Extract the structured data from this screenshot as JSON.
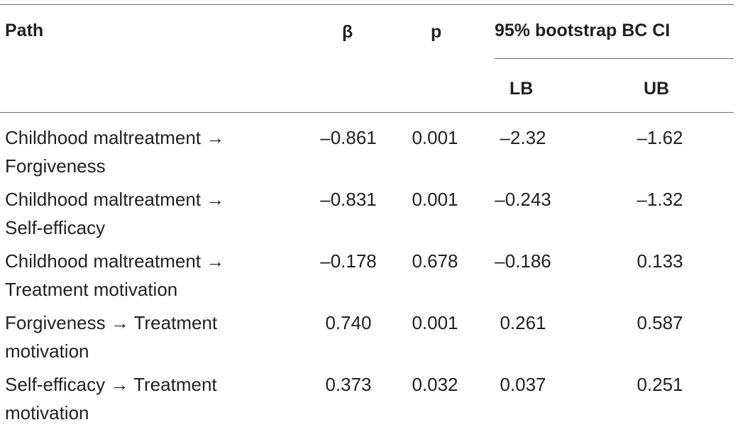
{
  "header": {
    "path": "Path",
    "beta": "β",
    "p": "p",
    "ci_group": "95% bootstrap BC CI",
    "lb": "LB",
    "ub": "UB"
  },
  "rows": [
    {
      "path_line1": "Childhood maltreatment →",
      "path_line2": "Forgiveness",
      "beta": "–0.861",
      "p": "0.001",
      "lb": "–2.32",
      "ub": "–1.62"
    },
    {
      "path_line1": "Childhood maltreatment →",
      "path_line2": "Self-efficacy",
      "beta": "–0.831",
      "p": "0.001",
      "lb": "–0.243",
      "ub": "–1.32"
    },
    {
      "path_line1": "Childhood maltreatment →",
      "path_line2": "Treatment motivation",
      "beta": "–0.178",
      "p": "0.678",
      "lb": "–0.186",
      "ub": "0.133"
    },
    {
      "path_line1": "Forgiveness → Treatment",
      "path_line2": "motivation",
      "beta": "0.740",
      "p": "0.001",
      "lb": "0.261",
      "ub": "0.587"
    },
    {
      "path_line1": "Self-efficacy → Treatment",
      "path_line2": "motivation",
      "beta": "0.373",
      "p": "0.032",
      "lb": "0.037",
      "ub": "0.251"
    }
  ]
}
